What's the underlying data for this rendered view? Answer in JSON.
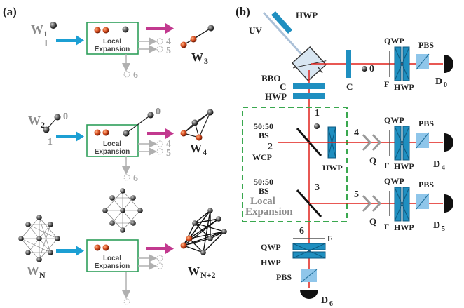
{
  "panel_a": {
    "label": "(a)",
    "row1": {
      "input_graph": "W",
      "input_sub": "1",
      "input_node_label": "1",
      "box_text_1": "Local",
      "box_text_2": "Expansion",
      "out_labels": [
        "4",
        "5",
        "6"
      ],
      "output_graph": "W",
      "output_sub": "3"
    },
    "row2": {
      "input_graph": "W",
      "input_sub": "2",
      "node_label_0": "0",
      "node_label_1": "1",
      "box_text_1": "Local",
      "box_text_2": "Expansion",
      "box_top_label": "0",
      "out_labels": [
        "4",
        "5",
        "6"
      ],
      "output_graph": "W",
      "output_sub": "4"
    },
    "row3": {
      "input_graph": "W",
      "input_sub": "N",
      "box_text_1": "Local",
      "box_text_2": "Expansion",
      "output_graph": "W",
      "output_sub": "N+2"
    }
  },
  "panel_b": {
    "label": "(b)",
    "uv": "UV",
    "hwp": "HWP",
    "qwp": "QWP",
    "pbs": "PBS",
    "bbo": "BBO",
    "c": "C",
    "f": "F",
    "bs": "BS",
    "split": "50:50",
    "wcp": "WCP",
    "q": "Q",
    "local_1": "Local",
    "local_2": "Expansion",
    "d": "D",
    "d_subs": [
      "0",
      "4",
      "5",
      "6"
    ],
    "mode_labels": [
      "0",
      "1",
      "2",
      "3",
      "4",
      "5",
      "6"
    ]
  },
  "colors": {
    "teal_arrow": "#1c9fd3",
    "magenta_arrow": "#c2398f",
    "box_green": "#2e9e5a",
    "beam_red": "#e0201a",
    "optic_blue": "#1f8fc0",
    "pbs_blue": "#8fc6ea",
    "dashed_green": "#3aa84f"
  }
}
